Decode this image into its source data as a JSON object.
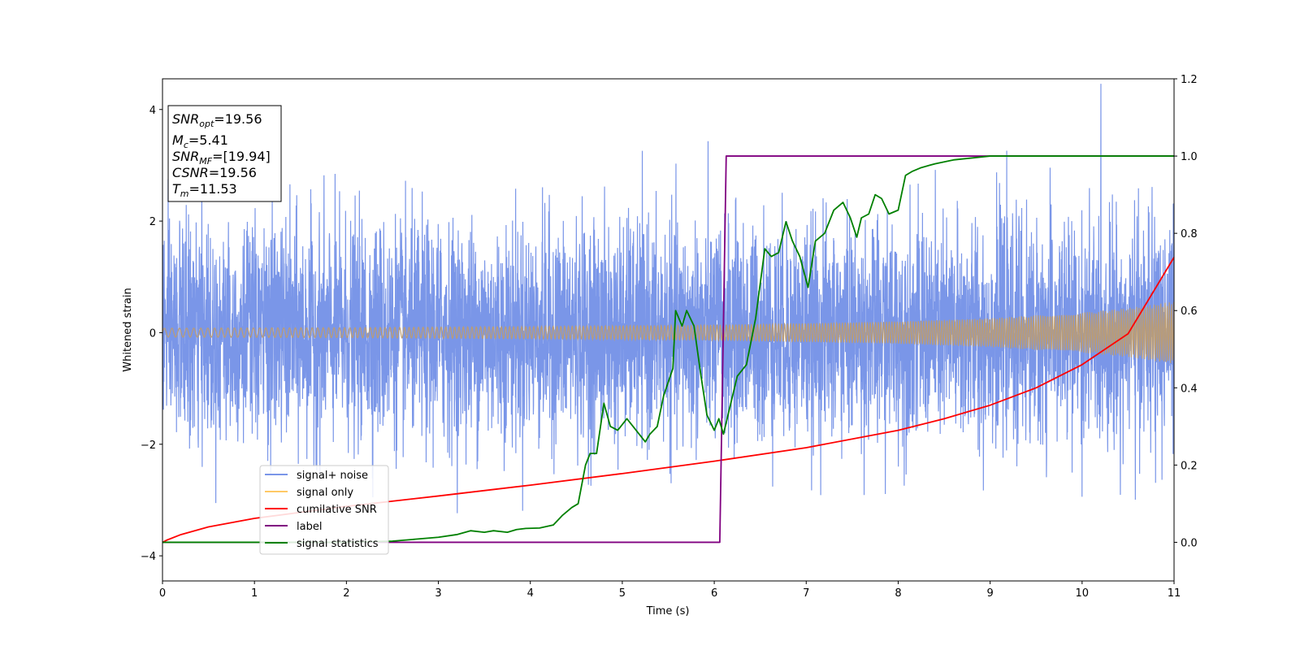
{
  "chart_data": {
    "type": "line",
    "title": "",
    "xlabel": "Time (s)",
    "ylabel_left": "Whitened strain",
    "ylabel_right": "",
    "xlim": [
      0,
      11
    ],
    "ylim_left": [
      -4.45,
      4.55
    ],
    "ylim_right": [
      -0.1,
      1.2
    ],
    "xticks": [
      "0",
      "1",
      "2",
      "3",
      "4",
      "5",
      "6",
      "7",
      "8",
      "9",
      "10",
      "11"
    ],
    "yticks_left": [
      "−4",
      "−2",
      "0",
      "2",
      "4"
    ],
    "yticks_right": [
      "0.0",
      "0.2",
      "0.4",
      "0.6",
      "0.8",
      "1.0",
      "1.2"
    ],
    "grid": false,
    "legend_placement": "lower-left",
    "annotation": {
      "snr_opt": {
        "symbol": "SNR",
        "sub": "opt",
        "value": "=19.56"
      },
      "mc": {
        "symbol": "M",
        "sub": "c",
        "value": "=5.41"
      },
      "snr_mf": {
        "symbol": "SNR",
        "sub": "MF",
        "value": "=[19.94]"
      },
      "csnr": {
        "symbol": "CSNR",
        "value": "=19.56"
      },
      "tm": {
        "symbol": "T",
        "sub": "m",
        "value": "=11.53"
      }
    },
    "series": [
      {
        "name": "signal+ noise",
        "axis": "left",
        "color": "#7a96e8",
        "kind": "noise",
        "sigma": 1.0,
        "envelope_x": [
          0,
          11
        ],
        "envelope_ymax_approx": [
          2.4,
          2.6
        ],
        "envelope_ymin_approx": [
          -2.3,
          -2.3
        ]
      },
      {
        "name": "signal only",
        "axis": "left",
        "color": "#ffc966",
        "kind": "chirp",
        "amplitude_x": [
          0,
          2,
          4,
          6,
          8,
          9,
          10,
          10.5,
          11
        ],
        "amplitude_y": [
          0.08,
          0.09,
          0.11,
          0.14,
          0.2,
          0.26,
          0.36,
          0.44,
          0.56
        ]
      },
      {
        "name": "cumilative SNR",
        "axis": "right",
        "color": "#ff0000",
        "x": [
          0,
          0.05,
          0.2,
          0.5,
          1,
          2,
          3,
          4,
          5,
          6,
          7,
          8,
          8.5,
          9,
          9.5,
          10,
          10.5,
          11
        ],
        "y": [
          0.0,
          0.006,
          0.02,
          0.04,
          0.062,
          0.093,
          0.12,
          0.148,
          0.178,
          0.21,
          0.245,
          0.29,
          0.32,
          0.355,
          0.4,
          0.46,
          0.54,
          0.738
        ]
      },
      {
        "name": "label",
        "axis": "right",
        "color": "#800080",
        "x": [
          0,
          6.06,
          6.13,
          11
        ],
        "y": [
          0.0,
          0.0,
          1.0,
          1.0
        ]
      },
      {
        "name": "signal statistics",
        "axis": "right",
        "color": "#008000",
        "x": [
          0,
          1,
          2,
          2.5,
          2.75,
          3,
          3.2,
          3.35,
          3.5,
          3.6,
          3.75,
          3.85,
          3.95,
          4.1,
          4.25,
          4.35,
          4.45,
          4.52,
          4.6,
          4.65,
          4.72,
          4.8,
          4.87,
          4.95,
          5.05,
          5.15,
          5.25,
          5.3,
          5.38,
          5.45,
          5.55,
          5.58,
          5.65,
          5.7,
          5.78,
          5.85,
          5.92,
          6.0,
          6.05,
          6.1,
          6.15,
          6.25,
          6.35,
          6.45,
          6.55,
          6.62,
          6.7,
          6.78,
          6.85,
          6.93,
          7.02,
          7.1,
          7.2,
          7.3,
          7.4,
          7.48,
          7.55,
          7.6,
          7.68,
          7.75,
          7.82,
          7.9,
          8.0,
          8.08,
          8.15,
          8.25,
          8.4,
          8.6,
          9.0,
          9.3,
          10,
          11
        ],
        "y": [
          0.0,
          0.0,
          0.0,
          0.003,
          0.008,
          0.013,
          0.02,
          0.03,
          0.026,
          0.03,
          0.026,
          0.033,
          0.036,
          0.037,
          0.045,
          0.07,
          0.09,
          0.1,
          0.2,
          0.23,
          0.23,
          0.36,
          0.3,
          0.29,
          0.32,
          0.29,
          0.26,
          0.28,
          0.3,
          0.38,
          0.45,
          0.6,
          0.56,
          0.6,
          0.56,
          0.44,
          0.33,
          0.29,
          0.32,
          0.28,
          0.33,
          0.43,
          0.46,
          0.58,
          0.76,
          0.74,
          0.75,
          0.83,
          0.78,
          0.74,
          0.66,
          0.78,
          0.8,
          0.86,
          0.88,
          0.84,
          0.79,
          0.84,
          0.85,
          0.9,
          0.89,
          0.85,
          0.86,
          0.95,
          0.96,
          0.97,
          0.98,
          0.99,
          1.0,
          1.0,
          1.0,
          1.0
        ]
      }
    ]
  },
  "colors": {
    "noise": "#7a96e8",
    "signal": "#ffc966",
    "overlap": "#bb9c74",
    "snr": "#ff0000",
    "label": "#800080",
    "stats": "#008000"
  }
}
